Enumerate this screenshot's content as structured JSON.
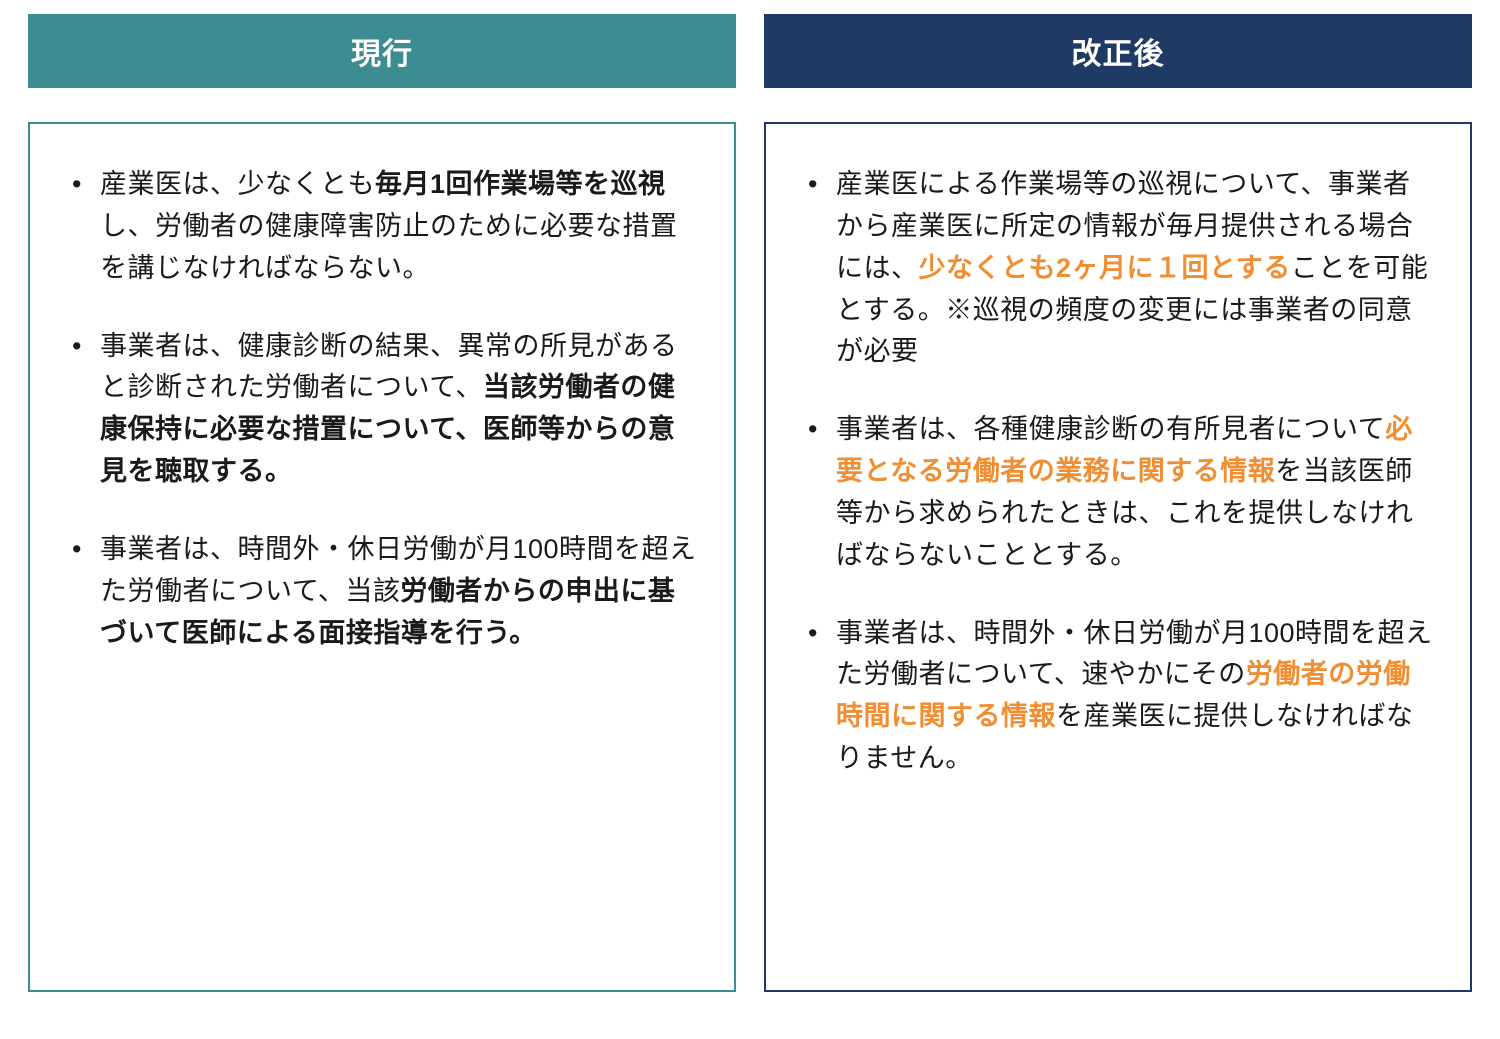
{
  "left": {
    "header": {
      "label": "現行",
      "bg": "#3b8d92",
      "fg": "#ffffff"
    },
    "border_color": "#3b8d92",
    "highlight_color": "#1a1a1a",
    "items": [
      [
        {
          "t": "産業医は、少なくとも",
          "b": false,
          "hl": false
        },
        {
          "t": "毎月1回作業場等を巡視",
          "b": true,
          "hl": false
        },
        {
          "t": "し、労働者の健康障害防止のために必要な措置を講じなければならない。",
          "b": false,
          "hl": false
        }
      ],
      [
        {
          "t": "事業者は、健康診断の結果、異常の所見があると診断された労働者について、",
          "b": false,
          "hl": false
        },
        {
          "t": "当該労働者の健康保持に必要な措置について、医師等からの意見を聴取する。",
          "b": true,
          "hl": false
        }
      ],
      [
        {
          "t": "事業者は、時間外・休日労働が月100時間を超えた労働者について、当該",
          "b": false,
          "hl": false
        },
        {
          "t": "労働者からの申出に基づいて医師による面接指導を行う。",
          "b": true,
          "hl": false
        }
      ]
    ]
  },
  "right": {
    "header": {
      "label": "改正後",
      "bg": "#1f3a64",
      "fg": "#ffffff"
    },
    "border_color": "#1f3a64",
    "highlight_color": "#ef8e33",
    "items": [
      [
        {
          "t": "産業医による作業場等の巡視について、事業者から産業医に所定の情報が毎月提供される場合には、",
          "b": false,
          "hl": false
        },
        {
          "t": "少なくとも2ヶ月に１回とする",
          "b": true,
          "hl": true
        },
        {
          "t": "ことを可能とする。※巡視の頻度の変更には事業者の同意が必要",
          "b": false,
          "hl": false
        }
      ],
      [
        {
          "t": "事業者は、各種健康診断の有所見者について",
          "b": false,
          "hl": false
        },
        {
          "t": "必要となる労働者の業務に関する情報",
          "b": true,
          "hl": true
        },
        {
          "t": "を当該医師等から求められたときは、これを提供しなければならないこととする。",
          "b": false,
          "hl": false
        }
      ],
      [
        {
          "t": "事業者は、時間外・休日労働が月100時間を超えた労働者について、速やかにその",
          "b": false,
          "hl": false
        },
        {
          "t": "労働者の労働時間に関する情報",
          "b": true,
          "hl": true
        },
        {
          "t": "を産業医に提供しなければなりません。",
          "b": false,
          "hl": false
        }
      ]
    ]
  },
  "typography": {
    "body_fontsize": 27,
    "header_fontsize": 30,
    "line_height": 1.55
  },
  "background": "#ffffff"
}
